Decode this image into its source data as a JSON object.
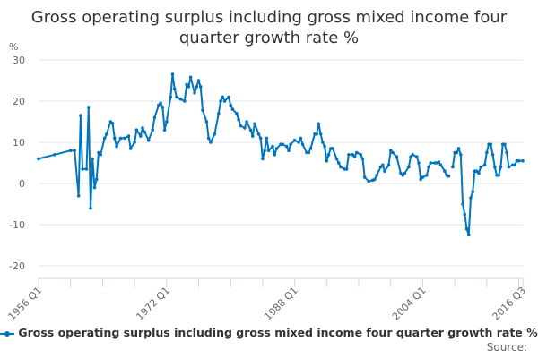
{
  "chart_data": {
    "type": "line",
    "title": "Gross operating surplus including gross mixed income four quarter growth rate %",
    "ylabel": "%",
    "xlabel": "",
    "ylim": [
      -20,
      30
    ],
    "yticks": [
      30,
      20,
      10,
      0,
      -10,
      -20
    ],
    "xrange": [
      "1956 Q1",
      "2016 Q3"
    ],
    "xtick_labels": [
      "1956 Q1",
      "1972 Q1",
      "1988 Q1",
      "2004 Q1",
      "2016 Q3"
    ],
    "grid": true,
    "legend": "bottom",
    "color": "#0075bf",
    "series": [
      {
        "name": "Gross operating surplus including gross mixed income four quarter growth rate %",
        "points": [
          [
            "1956 Q1",
            6
          ],
          [
            "1958 Q1",
            7
          ],
          [
            "1960 Q1",
            8
          ],
          [
            "1960 Q3",
            8
          ],
          [
            "1961 Q1",
            -3
          ],
          [
            "1961 Q2",
            16.5
          ],
          [
            "1961 Q3",
            3.5
          ],
          [
            "1962 Q1",
            3.5
          ],
          [
            "1962 Q2",
            18.5
          ],
          [
            "1962 Q3",
            -6
          ],
          [
            "1962 Q4",
            6
          ],
          [
            "1963 Q1",
            -1
          ],
          [
            "1963 Q2",
            1
          ],
          [
            "1963 Q3",
            7.5
          ],
          [
            "1963 Q4",
            7
          ],
          [
            "1964 Q2",
            11
          ],
          [
            "1964 Q3",
            12
          ],
          [
            "1965 Q1",
            15
          ],
          [
            "1965 Q2",
            14.6
          ],
          [
            "1965 Q3",
            11
          ],
          [
            "1965 Q4",
            9
          ],
          [
            "1966 Q2",
            11
          ],
          [
            "1966 Q4",
            11
          ],
          [
            "1967 Q2",
            11.5
          ],
          [
            "1967 Q3",
            8.5
          ],
          [
            "1968 Q1",
            10
          ],
          [
            "1968 Q2",
            13
          ],
          [
            "1968 Q4",
            11.5
          ],
          [
            "1969 Q1",
            13.5
          ],
          [
            "1969 Q2",
            12.5
          ],
          [
            "1969 Q4",
            10.5
          ],
          [
            "1970 Q2",
            13
          ],
          [
            "1970 Q3",
            16
          ],
          [
            "1971 Q1",
            19
          ],
          [
            "1971 Q2",
            19.5
          ],
          [
            "1971 Q3",
            18.5
          ],
          [
            "1971 Q4",
            13
          ],
          [
            "1972 Q1",
            15
          ],
          [
            "1972 Q3",
            21
          ],
          [
            "1972 Q4",
            26.5
          ],
          [
            "1973 Q1",
            23
          ],
          [
            "1973 Q2",
            21
          ],
          [
            "1973 Q4",
            20.5
          ],
          [
            "1974 Q2",
            20
          ],
          [
            "1974 Q3",
            24
          ],
          [
            "1974 Q4",
            23.5
          ],
          [
            "1975 Q1",
            25.8
          ],
          [
            "1975 Q3",
            22
          ],
          [
            "1975 Q4",
            23.5
          ],
          [
            "1976 Q1",
            25
          ],
          [
            "1976 Q2",
            23.5
          ],
          [
            "1976 Q3",
            17.8
          ],
          [
            "1977 Q1",
            15
          ],
          [
            "1977 Q2",
            11
          ],
          [
            "1977 Q3",
            10
          ],
          [
            "1978 Q1",
            12
          ],
          [
            "1978 Q3",
            17
          ],
          [
            "1978 Q4",
            20
          ],
          [
            "1979 Q1",
            21
          ],
          [
            "1979 Q2",
            20
          ],
          [
            "1979 Q4",
            21
          ],
          [
            "1980 Q1",
            19
          ],
          [
            "1980 Q2",
            18
          ],
          [
            "1980 Q4",
            17
          ],
          [
            "1981 Q1",
            15.5
          ],
          [
            "1981 Q2",
            14
          ],
          [
            "1981 Q4",
            13.5
          ],
          [
            "1982 Q1",
            15
          ],
          [
            "1982 Q3",
            13
          ],
          [
            "1982 Q4",
            11.5
          ],
          [
            "1983 Q1",
            14.5
          ],
          [
            "1983 Q3",
            12
          ],
          [
            "1983 Q4",
            11
          ],
          [
            "1984 Q1",
            6
          ],
          [
            "1984 Q2",
            8
          ],
          [
            "1984 Q3",
            11
          ],
          [
            "1984 Q4",
            8
          ],
          [
            "1985 Q2",
            9
          ],
          [
            "1985 Q3",
            7
          ],
          [
            "1985 Q4",
            8.5
          ],
          [
            "1986 Q2",
            9.5
          ],
          [
            "1986 Q3",
            9.5
          ],
          [
            "1987 Q1",
            9
          ],
          [
            "1987 Q2",
            8
          ],
          [
            "1987 Q3",
            9.5
          ],
          [
            "1988 Q1",
            10.5
          ],
          [
            "1988 Q3",
            10
          ],
          [
            "1988 Q4",
            11
          ],
          [
            "1989 Q1",
            9.5
          ],
          [
            "1989 Q3",
            7.5
          ],
          [
            "1989 Q4",
            7.5
          ],
          [
            "1990 Q1",
            8.5
          ],
          [
            "1990 Q3",
            12
          ],
          [
            "1990 Q4",
            12
          ],
          [
            "1991 Q1",
            14.5
          ],
          [
            "1991 Q2",
            12
          ],
          [
            "1991 Q3",
            10
          ],
          [
            "1991 Q4",
            9
          ],
          [
            "1992 Q1",
            5.5
          ],
          [
            "1992 Q2",
            7
          ],
          [
            "1992 Q3",
            8.5
          ],
          [
            "1992 Q4",
            8.5
          ],
          [
            "1993 Q2",
            6
          ],
          [
            "1993 Q3",
            5
          ],
          [
            "1993 Q4",
            4
          ],
          [
            "1994 Q2",
            3.5
          ],
          [
            "1994 Q3",
            3.5
          ],
          [
            "1994 Q4",
            7
          ],
          [
            "1995 Q2",
            7
          ],
          [
            "1995 Q3",
            6.5
          ],
          [
            "1995 Q4",
            7.5
          ],
          [
            "1996 Q2",
            7
          ],
          [
            "1996 Q3",
            6
          ],
          [
            "1996 Q4",
            1.5
          ],
          [
            "1997 Q2",
            0.5
          ],
          [
            "1997 Q4",
            0.8
          ],
          [
            "1998 Q1",
            1
          ],
          [
            "1998 Q2",
            2
          ],
          [
            "1998 Q4",
            4
          ],
          [
            "1999 Q1",
            4.5
          ],
          [
            "1999 Q2",
            3
          ],
          [
            "1999 Q4",
            4.5
          ],
          [
            "2000 Q1",
            8
          ],
          [
            "2000 Q2",
            7.5
          ],
          [
            "2000 Q4",
            6.5
          ],
          [
            "2001 Q2",
            2.5
          ],
          [
            "2001 Q3",
            2
          ],
          [
            "2001 Q4",
            2.5
          ],
          [
            "2002 Q2",
            4
          ],
          [
            "2002 Q3",
            6.5
          ],
          [
            "2002 Q4",
            7
          ],
          [
            "2003 Q2",
            6.5
          ],
          [
            "2003 Q3",
            5
          ],
          [
            "2003 Q4",
            1
          ],
          [
            "2004 Q1",
            1.5
          ],
          [
            "2004 Q3",
            2
          ],
          [
            "2004 Q4",
            4
          ],
          [
            "2005 Q1",
            5
          ],
          [
            "2005 Q3",
            5
          ],
          [
            "2005 Q4",
            5
          ],
          [
            "2006 Q1",
            5.2
          ],
          [
            "2006 Q2",
            4.5
          ],
          [
            "2006 Q4",
            3
          ],
          [
            "2007 Q1",
            2
          ],
          [
            "2007 Q2",
            1.8
          ],
          [
            "2007 Q3",
            null
          ],
          [
            "2007 Q4",
            4
          ],
          [
            "2008 Q1",
            7.5
          ],
          [
            "2008 Q2",
            7.5
          ],
          [
            "2008 Q3",
            8.5
          ],
          [
            "2008 Q4",
            7
          ],
          [
            "2009 Q1",
            -5
          ],
          [
            "2009 Q2",
            -7.5
          ],
          [
            "2009 Q3",
            -11
          ],
          [
            "2009 Q4",
            -12.5
          ],
          [
            "2010 Q1",
            -3.5
          ],
          [
            "2010 Q2",
            -2
          ],
          [
            "2010 Q3",
            3
          ],
          [
            "2010 Q4",
            3
          ],
          [
            "2011 Q1",
            2.5
          ],
          [
            "2011 Q2",
            4
          ],
          [
            "2011 Q4",
            4.5
          ],
          [
            "2012 Q1",
            7.5
          ],
          [
            "2012 Q2",
            9.5
          ],
          [
            "2012 Q3",
            9.5
          ],
          [
            "2012 Q4",
            7
          ],
          [
            "2013 Q1",
            4
          ],
          [
            "2013 Q2",
            2
          ],
          [
            "2013 Q3",
            2
          ],
          [
            "2013 Q4",
            4
          ],
          [
            "2014 Q1",
            9.5
          ],
          [
            "2014 Q2",
            9.5
          ],
          [
            "2014 Q3",
            7.5
          ],
          [
            "2014 Q4",
            4
          ],
          [
            "2015 Q2",
            4.5
          ],
          [
            "2015 Q3",
            4.5
          ],
          [
            "2015 Q4",
            5.5
          ],
          [
            "2016 Q1",
            5.5
          ],
          [
            "2016 Q3",
            5.5
          ]
        ]
      }
    ],
    "source_label": "Source:"
  }
}
